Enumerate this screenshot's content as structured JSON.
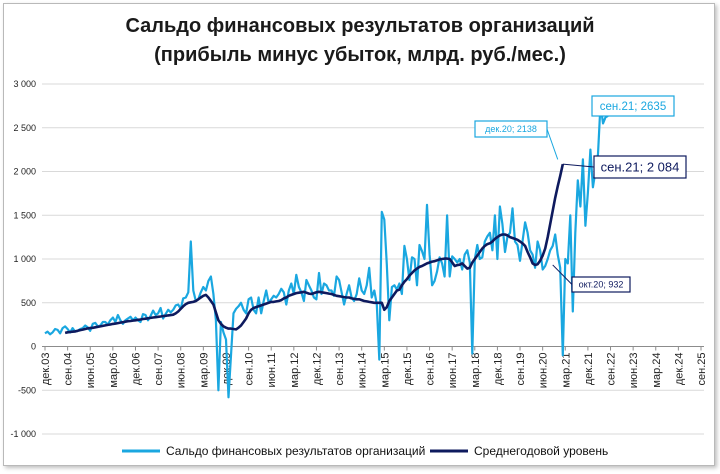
{
  "chart_data": {
    "type": "line",
    "title_lines": [
      "Сальдо финансовых результатов организаций",
      "(прибыль минус убыток, млрд. руб./мес.)"
    ],
    "ylim": [
      -1000,
      3000
    ],
    "yticks": [
      -1000,
      -500,
      0,
      500,
      1000,
      1500,
      2000,
      2500,
      3000
    ],
    "ytick_labels": [
      "-1 000",
      "-500",
      "0",
      "500",
      "1 000",
      "1 500",
      "2 000",
      "2 500",
      "3 000"
    ],
    "xticks": [
      "дек.03",
      "сен.04",
      "июн.05",
      "мар.06",
      "дек.06",
      "сен.07",
      "июн.08",
      "мар.09",
      "дек.09",
      "сен.10",
      "июн.11",
      "мар.12",
      "дек.12",
      "сен.13",
      "июн.14",
      "мар.15",
      "дек.15",
      "сен.16",
      "июн.17",
      "мар.18",
      "дек.18",
      "сен.19",
      "июн.20",
      "мар.21",
      "дек.21",
      "сен.22",
      "июн.23",
      "мар.24",
      "дек.24",
      "сен.25"
    ],
    "x_start": "дек.03",
    "x_end": "сен.25",
    "grid": "horizontal",
    "legend_position": "bottom",
    "series": [
      {
        "name": "Сальдо финансовых результатов организаций",
        "color": "#1aa7e0",
        "start": "дек.03",
        "values": [
          150,
          170,
          140,
          160,
          200,
          190,
          150,
          210,
          230,
          200,
          160,
          210,
          170,
          180,
          200,
          210,
          240,
          220,
          180,
          260,
          270,
          230,
          240,
          280,
          280,
          250,
          300,
          330,
          280,
          360,
          300,
          260,
          300,
          320,
          340,
          300,
          330,
          300,
          280,
          370,
          360,
          300,
          350,
          410,
          360,
          380,
          440,
          320,
          370,
          420,
          390,
          420,
          470,
          480,
          430,
          550,
          560,
          620,
          1200,
          640,
          520,
          540,
          620,
          680,
          640,
          750,
          800,
          600,
          300,
          -500,
          280,
          160,
          80,
          -580,
          -100,
          380,
          430,
          460,
          500,
          420,
          380,
          540,
          560,
          420,
          380,
          560,
          380,
          520,
          640,
          500,
          540,
          580,
          560,
          600,
          660,
          620,
          480,
          640,
          720,
          600,
          820,
          680,
          620,
          520,
          760,
          700,
          640,
          560,
          540,
          840,
          600,
          720,
          700,
          640,
          640,
          580,
          800,
          760,
          620,
          480,
          600,
          700,
          560,
          520,
          600,
          780,
          640,
          600,
          700,
          900,
          560,
          640,
          480,
          -150,
          1540,
          1450,
          940,
          300,
          680,
          700,
          650,
          720,
          600,
          1150,
          1000,
          760,
          1020,
          1000,
          700,
          1160,
          1090,
          1000,
          1620,
          1050,
          700,
          750,
          860,
          1020,
          950,
          800,
          1500,
          800,
          1030,
          1000,
          960,
          1000,
          880,
          1050,
          1100,
          960,
          -80,
          1000,
          1160,
          1000,
          1020,
          1200,
          1260,
          1300,
          1100,
          1500,
          1000,
          1600,
          1400,
          1080,
          1260,
          1300,
          1580,
          1200,
          1160,
          980,
          1200,
          1420,
          1300,
          1100,
          1050,
          900,
          1200,
          1100,
          880,
          920,
          1000,
          1100,
          1150,
          1280,
          1050,
          900,
          -100,
          1000,
          950,
          1500,
          400,
          1300,
          1900,
          1600,
          2138,
          1380,
          1760,
          2250,
          1820,
          2000,
          2200,
          2770,
          2550,
          2620,
          2635
        ]
      },
      {
        "name": "Среднегодовой уровень",
        "color": "#0e1a5e",
        "start": "авг.04",
        "values": [
          155,
          162,
          166,
          169,
          173,
          180,
          187,
          193,
          200,
          207,
          210,
          214,
          219,
          225,
          230,
          236,
          241,
          247,
          252,
          258,
          262,
          267,
          273,
          278,
          283,
          289,
          292,
          296,
          300,
          305,
          309,
          314,
          318,
          322,
          327,
          331,
          335,
          339,
          343,
          347,
          351,
          355,
          359,
          363,
          378,
          400,
          430,
          460,
          485,
          500,
          505,
          510,
          520,
          540,
          560,
          580,
          590,
          560,
          520,
          480,
          390,
          300,
          260,
          230,
          215,
          205,
          205,
          200,
          195,
          215,
          240,
          280,
          320,
          380,
          420,
          440,
          450,
          460,
          470,
          480,
          490,
          500,
          510,
          510,
          515,
          520,
          530,
          550,
          560,
          580,
          590,
          600,
          610,
          615,
          620,
          625,
          615,
          605,
          600,
          610,
          620,
          625,
          620,
          615,
          610,
          605,
          600,
          590,
          580,
          575,
          570,
          565,
          560,
          560,
          550,
          545,
          540,
          540,
          530,
          520,
          515,
          510,
          505,
          500,
          500,
          500,
          500,
          420,
          450,
          520,
          560,
          600,
          640,
          650,
          700,
          740,
          770,
          810,
          840,
          870,
          890,
          910,
          920,
          935,
          950,
          960,
          970,
          975,
          985,
          995,
          1000,
          1005,
          1005,
          1000,
          960,
          920,
          930,
          935,
          950,
          920,
          890,
          900,
          960,
          1000,
          1040,
          1080,
          1120,
          1150,
          1170,
          1180,
          1200,
          1230,
          1250,
          1270,
          1280,
          1280,
          1270,
          1250,
          1240,
          1230,
          1220,
          1200,
          1180,
          1150,
          1080,
          1020,
          950,
          932,
          940,
          980,
          1040,
          1120,
          1250,
          1400,
          1550,
          1700,
          1830,
          1950,
          2084
        ]
      }
    ],
    "annotations": [
      {
        "label": "сен.21; 2635",
        "series": 0,
        "point": "last",
        "color": "#1aa7e0"
      },
      {
        "label": "сен.21; 2 084",
        "series": 1,
        "point": "last",
        "color": "#0e1a5e"
      },
      {
        "label": "дек.20; 2138",
        "series": 0,
        "date": "дек.20",
        "value": 2138,
        "color": "#1aa7e0"
      },
      {
        "label": "окт.20; 932",
        "series": 1,
        "date": "окт.20",
        "value": 932,
        "color": "#0e1a5e"
      }
    ]
  }
}
